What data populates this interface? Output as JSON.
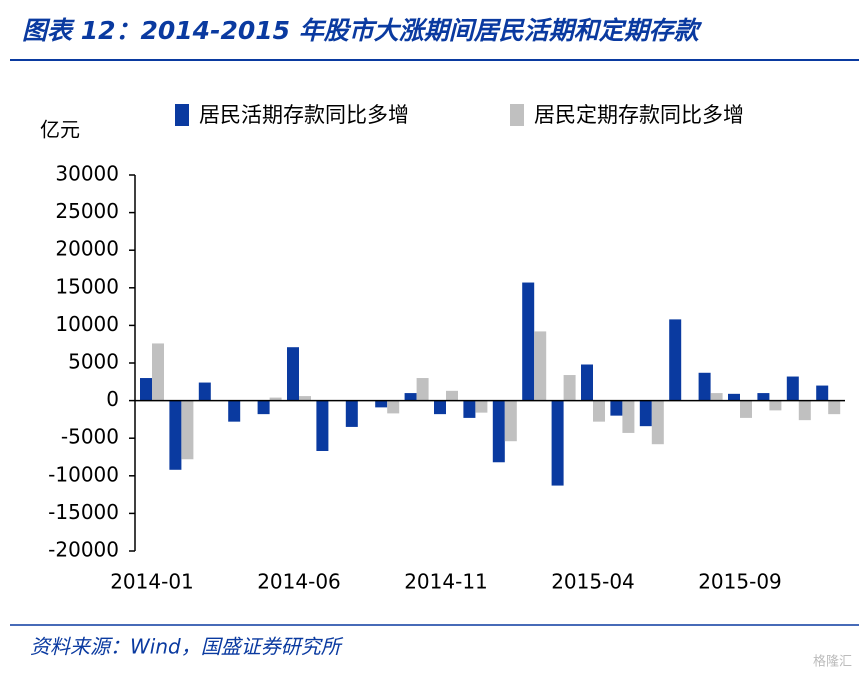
{
  "chart_data": {
    "type": "bar",
    "title": "图表 12：2014-2015 年股市大涨期间居民活期和定期存款",
    "y_label": "亿元",
    "source": "资料来源：Wind，国盛证券研究所",
    "watermark": "格隆汇",
    "categories": [
      "2014-01",
      null,
      null,
      null,
      null,
      "2014-06",
      null,
      null,
      null,
      null,
      "2014-11",
      null,
      null,
      null,
      null,
      "2015-04",
      null,
      null,
      null,
      null,
      "2015-09",
      null,
      null,
      null
    ],
    "series": [
      {
        "name": "居民活期存款同比多增",
        "color": "#0a3aa0",
        "values": [
          3000,
          -9200,
          2400,
          -2800,
          -1800,
          7100,
          -6700,
          -3500,
          -900,
          1000,
          -1800,
          -2300,
          -8200,
          15700,
          -11300,
          4800,
          -2000,
          -3400,
          10800,
          3700,
          900,
          1000,
          3200,
          2000
        ]
      },
      {
        "name": "居民定期存款同比多增",
        "color": "#c0c0c0",
        "values": [
          7600,
          -7800,
          0,
          0,
          400,
          600,
          0,
          0,
          -1700,
          3000,
          1300,
          -1600,
          -5400,
          9200,
          3400,
          -2800,
          -4300,
          -5800,
          0,
          1000,
          -2300,
          -1300,
          -2600,
          -1800
        ]
      }
    ],
    "ylim": [
      -20000,
      30000
    ],
    "yticks": [
      -20000,
      -15000,
      -10000,
      -5000,
      0,
      5000,
      10000,
      15000,
      20000,
      25000,
      30000
    ],
    "grid": false,
    "legend": "top"
  }
}
